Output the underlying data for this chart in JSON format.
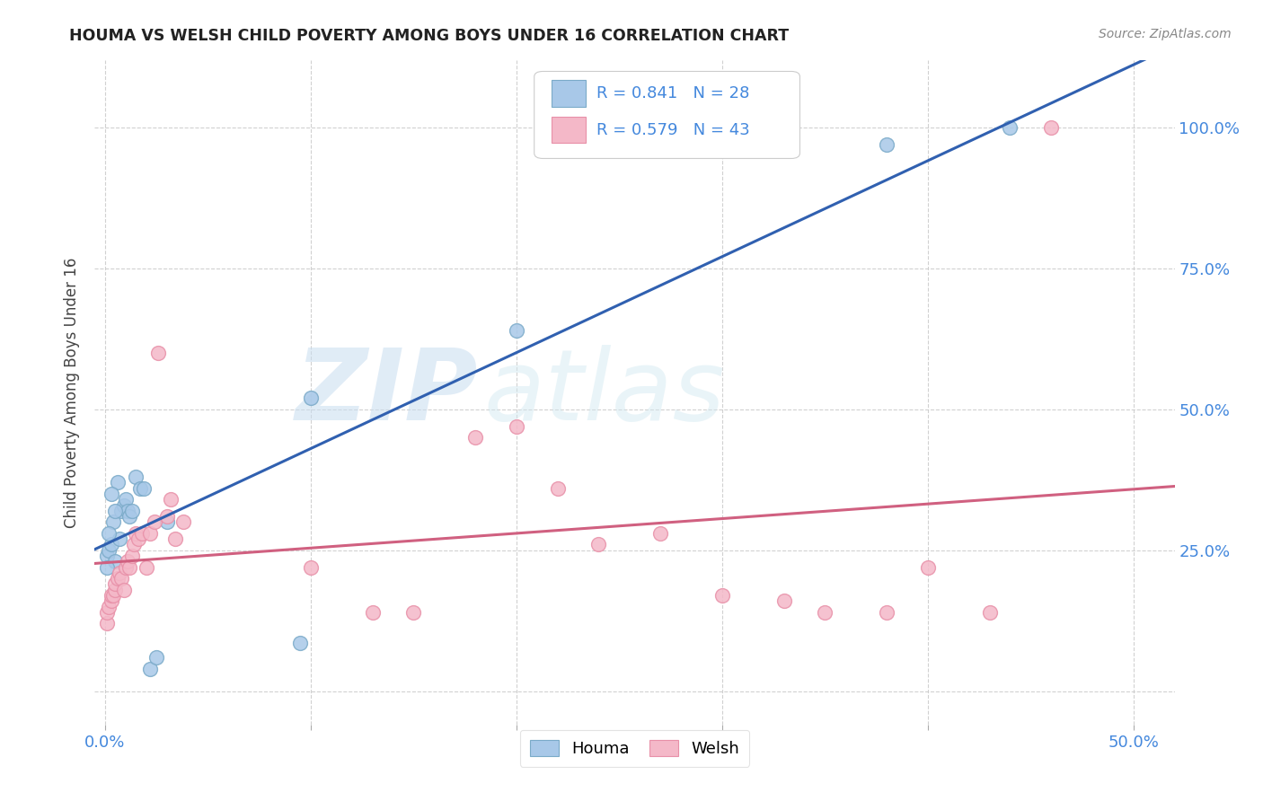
{
  "title": "HOUMA VS WELSH CHILD POVERTY AMONG BOYS UNDER 16 CORRELATION CHART",
  "source": "Source: ZipAtlas.com",
  "ylabel": "Child Poverty Among Boys Under 16",
  "houma_R": 0.841,
  "houma_N": 28,
  "welsh_R": 0.579,
  "welsh_N": 43,
  "houma_color": "#a8c8e8",
  "welsh_color": "#f4b8c8",
  "houma_edge_color": "#7aaac8",
  "welsh_edge_color": "#e890a8",
  "houma_line_color": "#3060b0",
  "welsh_line_color": "#d06080",
  "watermark_zip": "ZIP",
  "watermark_atlas": "atlas",
  "grid_color": "#cccccc",
  "tick_color": "#4488dd",
  "title_color": "#222222",
  "source_color": "#888888",
  "houma_x": [
    0.001,
    0.002,
    0.003,
    0.004,
    0.005,
    0.006,
    0.007,
    0.008,
    0.009,
    0.01,
    0.011,
    0.012,
    0.013,
    0.015,
    0.017,
    0.019,
    0.022,
    0.025,
    0.03,
    0.095,
    0.1,
    0.2,
    0.38,
    0.44,
    0.001,
    0.002,
    0.003,
    0.005
  ],
  "houma_y": [
    0.24,
    0.25,
    0.26,
    0.3,
    0.23,
    0.37,
    0.27,
    0.32,
    0.33,
    0.34,
    0.32,
    0.31,
    0.32,
    0.38,
    0.36,
    0.36,
    0.04,
    0.06,
    0.3,
    0.085,
    0.52,
    0.64,
    0.97,
    1.0,
    0.22,
    0.28,
    0.35,
    0.32
  ],
  "welsh_x": [
    0.001,
    0.001,
    0.002,
    0.003,
    0.003,
    0.004,
    0.005,
    0.005,
    0.006,
    0.007,
    0.008,
    0.009,
    0.01,
    0.011,
    0.012,
    0.013,
    0.014,
    0.015,
    0.016,
    0.018,
    0.02,
    0.022,
    0.024,
    0.026,
    0.03,
    0.032,
    0.034,
    0.038,
    0.1,
    0.13,
    0.15,
    0.18,
    0.2,
    0.22,
    0.24,
    0.27,
    0.3,
    0.33,
    0.35,
    0.38,
    0.4,
    0.43,
    0.46
  ],
  "welsh_y": [
    0.12,
    0.14,
    0.15,
    0.16,
    0.17,
    0.17,
    0.18,
    0.19,
    0.2,
    0.21,
    0.2,
    0.18,
    0.22,
    0.23,
    0.22,
    0.24,
    0.26,
    0.28,
    0.27,
    0.28,
    0.22,
    0.28,
    0.3,
    0.6,
    0.31,
    0.34,
    0.27,
    0.3,
    0.22,
    0.14,
    0.14,
    0.45,
    0.47,
    0.36,
    0.26,
    0.28,
    0.17,
    0.16,
    0.14,
    0.14,
    0.22,
    0.14,
    1.0
  ],
  "xlim": [
    -0.005,
    0.52
  ],
  "ylim": [
    -0.06,
    1.12
  ],
  "xtick_vals": [
    0.0,
    0.1,
    0.2,
    0.3,
    0.4,
    0.5
  ],
  "xtick_labels": [
    "0.0%",
    "",
    "",
    "",
    "",
    "50.0%"
  ],
  "ytick_vals": [
    0.0,
    0.25,
    0.5,
    0.75,
    1.0
  ],
  "ytick_labels": [
    "",
    "25.0%",
    "50.0%",
    "75.0%",
    "100.0%"
  ]
}
